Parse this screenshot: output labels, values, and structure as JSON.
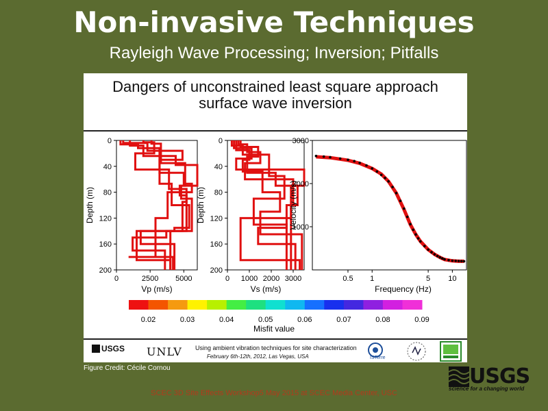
{
  "slide": {
    "title": "Non-invasive Techniques",
    "subtitle": "Rayleigh Wave Processing; Inversion; Pitfalls",
    "figure_title_line1": "Dangers of unconstrained least square approach",
    "figure_title_line2": "surface wave inversion",
    "credit": "Figure Credit: Cécile Cornou",
    "workshop": "SCEC 3D Site Effects Workshop5 May 2015 at SCEC Media Center, USC"
  },
  "footer": {
    "usgs_small": "USGS",
    "unlv": "UNLV",
    "line1": "Using ambient vibration techniques for site characterization",
    "line2": "February 6th-12th, 2012, Las Vegas, USA",
    "isterre": "ISTerre"
  },
  "usgs_logo": {
    "word": "USGS",
    "tagline": "science for a changing world"
  },
  "colors": {
    "background": "#5b6b30",
    "profile": "#e01010",
    "data_points": "#000000"
  },
  "chart_data": [
    {
      "type": "line",
      "xlabel": "Vp (m/s)",
      "ylabel": "Depth (m)",
      "xlim": [
        0,
        6000
      ],
      "ylim": [
        200,
        0
      ],
      "xticks": [
        0,
        2500,
        5000
      ],
      "yticks": [
        0,
        40,
        80,
        120,
        160,
        200
      ],
      "series": [
        {
          "x": [
            300,
            300,
            1600,
            1600,
            3200,
            3200,
            5000,
            5000,
            5600,
            5600,
            3800,
            3800,
            2900,
            2900,
            900,
            900,
            4200,
            4200
          ],
          "y": [
            0,
            6,
            6,
            12,
            12,
            50,
            50,
            67,
            67,
            80,
            80,
            120,
            120,
            180,
            180,
            180,
            180,
            200
          ]
        },
        {
          "x": [
            500,
            500,
            2300,
            2300,
            4900,
            4900,
            3200,
            3200,
            4100,
            4100,
            5400,
            5400,
            4300,
            4300,
            1500,
            1500,
            4000,
            4000
          ],
          "y": [
            0,
            4,
            4,
            16,
            16,
            30,
            30,
            67,
            67,
            100,
            100,
            135,
            135,
            140,
            140,
            185,
            185,
            200
          ]
        },
        {
          "x": [
            1000,
            1000,
            2000,
            2000,
            4400,
            4400,
            6000,
            6000,
            4700,
            4700,
            5200,
            5200,
            3700,
            3700,
            1200,
            1200,
            3600,
            3600
          ],
          "y": [
            0,
            8,
            8,
            24,
            24,
            38,
            38,
            70,
            70,
            85,
            85,
            140,
            140,
            150,
            150,
            170,
            170,
            200
          ]
        },
        {
          "x": [
            2000,
            2000,
            2800,
            2800,
            1400,
            1400,
            3900,
            3900,
            5200,
            5200,
            4900,
            4900,
            1800,
            1800,
            4300,
            4300
          ],
          "y": [
            0,
            3,
            3,
            20,
            20,
            45,
            45,
            75,
            75,
            95,
            95,
            140,
            140,
            160,
            160,
            200
          ]
        },
        {
          "x": [
            2600,
            2600,
            3300,
            3300,
            5100,
            5100,
            4800,
            4800,
            5600,
            5600,
            4000,
            4000
          ],
          "y": [
            0,
            5,
            5,
            35,
            35,
            70,
            70,
            90,
            90,
            140,
            140,
            200
          ]
        }
      ]
    },
    {
      "type": "line",
      "xlabel": "Vs (m/s)",
      "ylabel": "Depth (m)",
      "xlim": [
        0,
        3500
      ],
      "ylim": [
        200,
        0
      ],
      "xticks": [
        0,
        1000,
        2000,
        3000
      ],
      "yticks": [
        0,
        40,
        80,
        120,
        160,
        200
      ],
      "series": [
        {
          "x": [
            200,
            200,
            700,
            700,
            1900,
            1900,
            2600,
            2600,
            1200,
            1200,
            2700,
            2700
          ],
          "y": [
            0,
            8,
            8,
            22,
            22,
            55,
            55,
            90,
            90,
            130,
            130,
            200
          ]
        },
        {
          "x": [
            300,
            300,
            1100,
            1100,
            400,
            400,
            3500,
            3500,
            2900,
            2900,
            600,
            600,
            3300,
            3300
          ],
          "y": [
            0,
            12,
            12,
            28,
            28,
            45,
            45,
            70,
            70,
            120,
            120,
            185,
            185,
            200
          ]
        },
        {
          "x": [
            500,
            500,
            900,
            900,
            1500,
            1500,
            800,
            800,
            3000,
            3000,
            2700,
            2700,
            1400,
            1400,
            3100,
            3100
          ],
          "y": [
            0,
            6,
            6,
            18,
            18,
            35,
            35,
            60,
            60,
            100,
            100,
            135,
            135,
            160,
            160,
            200
          ]
        },
        {
          "x": [
            600,
            600,
            1400,
            1400,
            900,
            900,
            2200,
            2200,
            3200,
            3200,
            2900,
            2900
          ],
          "y": [
            0,
            10,
            10,
            25,
            25,
            50,
            50,
            70,
            70,
            100,
            100,
            200
          ]
        },
        {
          "x": [
            400,
            400,
            1000,
            1000,
            700,
            700,
            1600,
            1600,
            2400,
            2400,
            1500,
            1500,
            3400,
            3400
          ],
          "y": [
            0,
            15,
            15,
            30,
            30,
            48,
            48,
            80,
            80,
            110,
            110,
            145,
            145,
            200
          ]
        }
      ]
    },
    {
      "type": "line",
      "xlabel": "Frequency (Hz)",
      "ylabel": "Velocity (m/s)",
      "xscale": "log",
      "xlim": [
        0.18,
        15
      ],
      "ylim": [
        0,
        3000
      ],
      "xticks": [
        0.5,
        1,
        5,
        10
      ],
      "xtick_labels": [
        "0.5",
        "1",
        "5",
        "10"
      ],
      "yticks": [
        1000,
        2000,
        3000
      ],
      "curve": {
        "x": [
          0.2,
          0.3,
          0.5,
          0.7,
          1.0,
          1.3,
          1.6,
          2.0,
          2.5,
          3.0,
          3.5,
          4.0,
          5.0,
          6.0,
          7.0,
          8.0,
          10.0,
          12.0,
          14.0
        ],
        "y": [
          2620,
          2600,
          2540,
          2470,
          2350,
          2220,
          2050,
          1780,
          1400,
          1050,
          820,
          660,
          470,
          360,
          290,
          240,
          210,
          200,
          200
        ]
      },
      "observed": {
        "x": [
          0.2,
          0.25,
          0.3,
          0.4,
          0.5,
          0.6,
          0.7,
          0.85,
          1.0,
          1.15,
          1.3,
          1.45,
          1.6,
          1.8,
          2.0,
          2.25,
          2.5,
          2.75,
          3.0,
          3.25,
          3.5,
          3.75,
          4.0,
          4.5,
          5.0,
          5.5,
          6.0,
          6.5,
          7.0,
          7.5,
          8.0,
          9.0,
          10.0,
          11.0,
          12.0,
          13.0,
          14.0
        ],
        "y": [
          2640,
          2625,
          2610,
          2580,
          2550,
          2520,
          2480,
          2420,
          2350,
          2280,
          2200,
          2130,
          2050,
          1920,
          1780,
          1600,
          1420,
          1230,
          1060,
          930,
          820,
          730,
          660,
          550,
          470,
          410,
          360,
          320,
          290,
          265,
          245,
          225,
          215,
          210,
          205,
          202,
          200
        ]
      }
    }
  ],
  "colorbar": {
    "label": "Misfit value",
    "tick_labels": [
      "0.02",
      "0.03",
      "0.04",
      "0.05",
      "0.06",
      "0.07",
      "0.08",
      "0.09"
    ],
    "colors": [
      "#ee1111",
      "#f45500",
      "#f59a10",
      "#fff200",
      "#b8f000",
      "#44ee44",
      "#1ee080",
      "#10e0d0",
      "#10b8f0",
      "#1670ff",
      "#1830ee",
      "#4428e0",
      "#8f20e0",
      "#d220e0",
      "#f030d8"
    ]
  }
}
